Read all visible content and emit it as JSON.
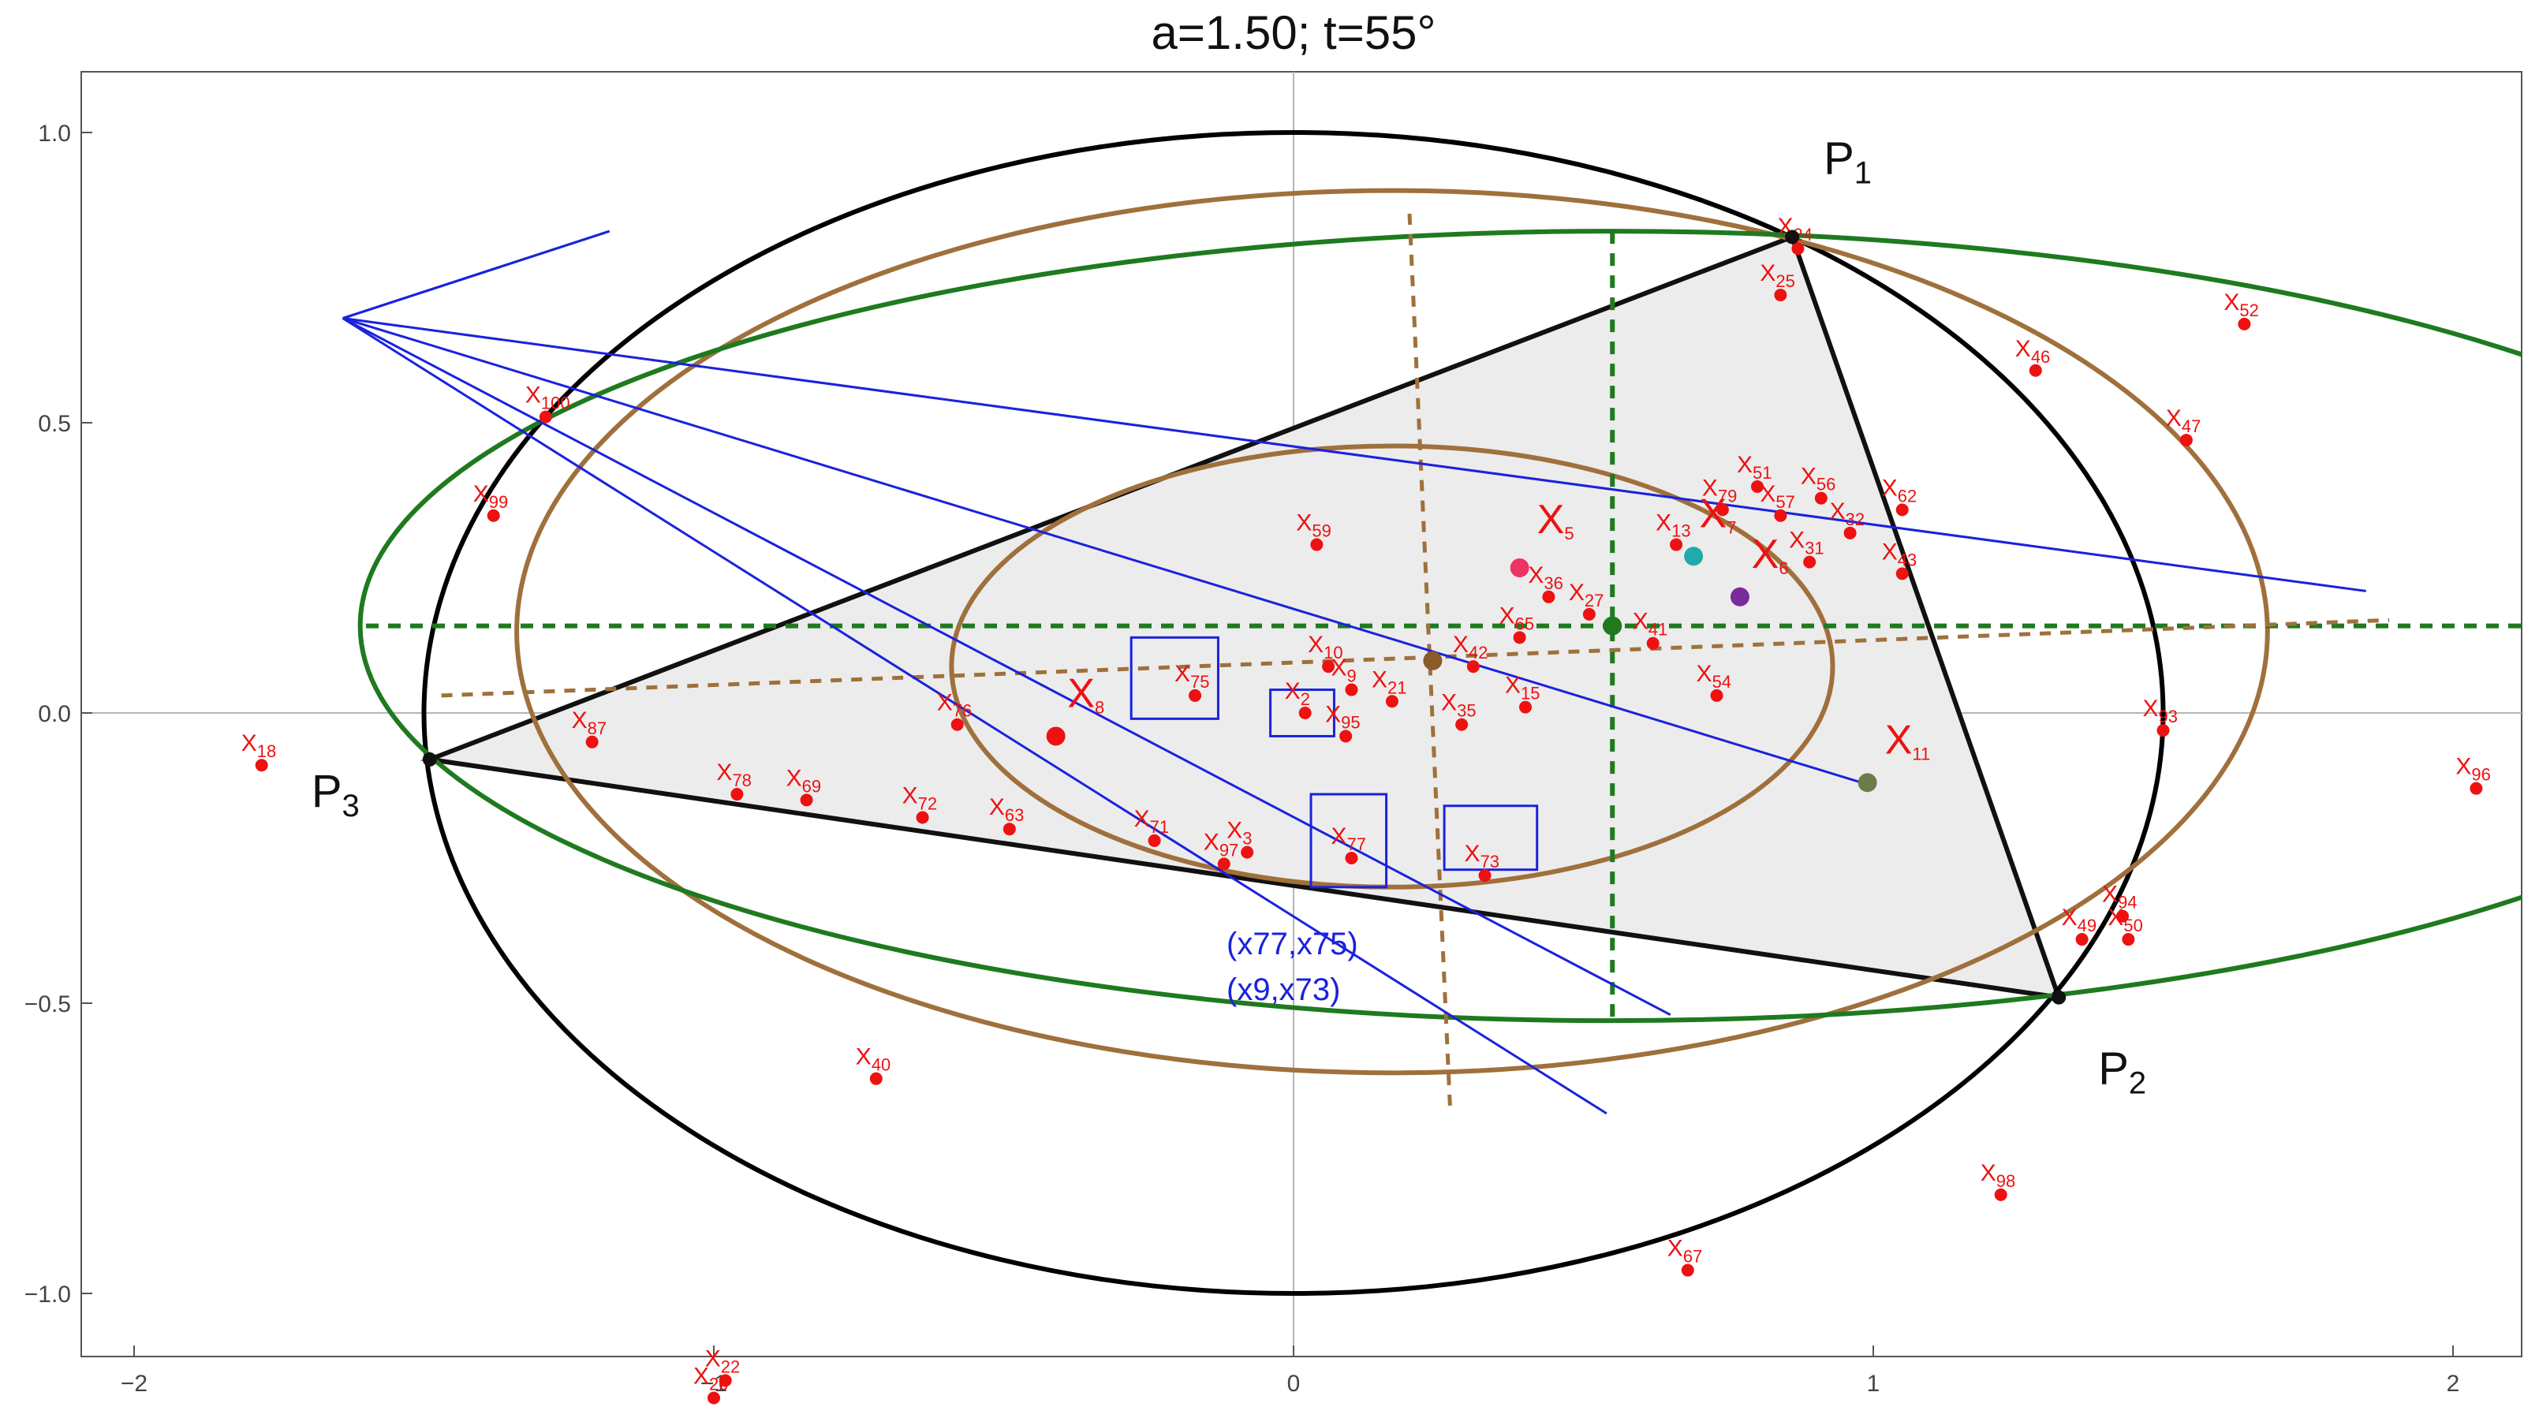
{
  "chart_data": {
    "type": "scatter",
    "title": "a=1.50; t=55°",
    "xlabel": "",
    "ylabel": "",
    "xlim": [
      -2.1,
      2.1
    ],
    "ylim": [
      -1.1,
      1.1
    ],
    "x_ticks": [
      -2,
      -1,
      0,
      1,
      2
    ],
    "y_ticks": [
      -1.0,
      -0.5,
      0.0,
      0.5,
      1.0
    ],
    "x_tick_labels": [
      "−2",
      "−1",
      "0",
      "1",
      "2"
    ],
    "y_tick_labels": [
      "−1.0",
      "−0.5",
      "0.0",
      "0.5",
      "1.0"
    ],
    "grid": false,
    "colors": {
      "circumellipse": "#000000",
      "brown_ellipses": "#a0703c",
      "green_ellipse": "#1f7a1f",
      "blue_lines": "#1a22dd",
      "points": "#ee1111",
      "triangle_fill": "#ececec"
    },
    "vertices": [
      {
        "base": "P",
        "sub": "1",
        "x": 0.86,
        "y": 0.82
      },
      {
        "base": "P",
        "sub": "2",
        "x": 1.32,
        "y": -0.49
      },
      {
        "base": "P",
        "sub": "3",
        "x": -1.49,
        "y": -0.08
      }
    ],
    "ellipses": [
      {
        "name": "circumellipse",
        "cx": 0,
        "cy": 0,
        "rx": 1.5,
        "ry": 1.0
      },
      {
        "name": "brown-outer",
        "cx": 0.17,
        "cy": 0.14,
        "rx": 1.51,
        "ry": 0.76
      },
      {
        "name": "brown-inner",
        "cx": 0.17,
        "cy": 0.08,
        "rx": 0.76,
        "ry": 0.38
      },
      {
        "name": "green",
        "cx": 0.55,
        "cy": 0.15,
        "rx": 2.16,
        "ry": 0.68
      }
    ],
    "center_markers": [
      {
        "x": 0.24,
        "y": 0.09,
        "color": "#8b5a2b"
      },
      {
        "x": 0.55,
        "y": 0.15,
        "color": "#1f7a1f"
      }
    ],
    "big_points": [
      {
        "base": "X",
        "sub": "5",
        "x": 0.39,
        "y": 0.25,
        "color": "#ee3366",
        "lx": 0.42,
        "ly": 0.31
      },
      {
        "base": "X",
        "sub": "8",
        "x": -0.41,
        "y": -0.04,
        "color": "#ee1111",
        "lx": -0.39,
        "ly": 0.01
      },
      {
        "base": "X",
        "sub": "11",
        "x": 0.99,
        "y": -0.12,
        "color": "#6b7b4a",
        "lx": 1.02,
        "ly": -0.07
      },
      {
        "base": "X",
        "sub": "7",
        "x": 0.69,
        "y": 0.27,
        "color": "#22aaaa",
        "lx": 0.7,
        "ly": 0.32
      },
      {
        "base": "X",
        "sub": "6",
        "x": 0.77,
        "y": 0.2,
        "color": "#7a2a9a",
        "lx": 0.79,
        "ly": 0.25
      }
    ],
    "points": [
      {
        "base": "X",
        "sub": "18",
        "x": -1.78,
        "y": -0.09
      },
      {
        "base": "X",
        "sub": "100",
        "x": -1.29,
        "y": 0.51
      },
      {
        "base": "X",
        "sub": "99",
        "x": -1.38,
        "y": 0.34
      },
      {
        "base": "X",
        "sub": "87",
        "x": -1.21,
        "y": -0.05
      },
      {
        "base": "X",
        "sub": "78",
        "x": -0.96,
        "y": -0.14
      },
      {
        "base": "X",
        "sub": "69",
        "x": -0.84,
        "y": -0.15
      },
      {
        "base": "X",
        "sub": "72",
        "x": -0.64,
        "y": -0.18
      },
      {
        "base": "X",
        "sub": "63",
        "x": -0.49,
        "y": -0.2
      },
      {
        "base": "X",
        "sub": "76",
        "x": -0.58,
        "y": -0.02
      },
      {
        "base": "X",
        "sub": "71",
        "x": -0.24,
        "y": -0.22
      },
      {
        "base": "X",
        "sub": "97",
        "x": -0.12,
        "y": -0.26
      },
      {
        "base": "X",
        "sub": "3",
        "x": -0.08,
        "y": -0.24
      },
      {
        "base": "X",
        "sub": "75",
        "x": -0.17,
        "y": 0.03
      },
      {
        "base": "X",
        "sub": "2",
        "x": 0.02,
        "y": 0.0
      },
      {
        "base": "X",
        "sub": "95",
        "x": 0.09,
        "y": -0.04
      },
      {
        "base": "X",
        "sub": "77",
        "x": 0.1,
        "y": -0.25
      },
      {
        "base": "X",
        "sub": "73",
        "x": 0.33,
        "y": -0.28
      },
      {
        "base": "X",
        "sub": "10",
        "x": 0.06,
        "y": 0.08
      },
      {
        "base": "X",
        "sub": "9",
        "x": 0.1,
        "y": 0.04
      },
      {
        "base": "X",
        "sub": "21",
        "x": 0.17,
        "y": 0.02
      },
      {
        "base": "X",
        "sub": "35",
        "x": 0.29,
        "y": -0.02
      },
      {
        "base": "X",
        "sub": "59",
        "x": 0.04,
        "y": 0.29
      },
      {
        "base": "X",
        "sub": "42",
        "x": 0.31,
        "y": 0.08
      },
      {
        "base": "X",
        "sub": "15",
        "x": 0.4,
        "y": 0.01
      },
      {
        "base": "X",
        "sub": "65",
        "x": 0.39,
        "y": 0.13
      },
      {
        "base": "X",
        "sub": "36",
        "x": 0.44,
        "y": 0.2
      },
      {
        "base": "X",
        "sub": "27",
        "x": 0.51,
        "y": 0.17
      },
      {
        "base": "X",
        "sub": "13",
        "x": 0.66,
        "y": 0.29
      },
      {
        "base": "X",
        "sub": "79",
        "x": 0.74,
        "y": 0.35
      },
      {
        "base": "X",
        "sub": "51",
        "x": 0.8,
        "y": 0.39
      },
      {
        "base": "X",
        "sub": "56",
        "x": 0.91,
        "y": 0.37
      },
      {
        "base": "X",
        "sub": "57",
        "x": 0.84,
        "y": 0.34
      },
      {
        "base": "X",
        "sub": "31",
        "x": 0.89,
        "y": 0.26
      },
      {
        "base": "X",
        "sub": "32",
        "x": 0.96,
        "y": 0.31
      },
      {
        "base": "X",
        "sub": "62",
        "x": 1.05,
        "y": 0.35
      },
      {
        "base": "X",
        "sub": "43",
        "x": 1.05,
        "y": 0.24
      },
      {
        "base": "X",
        "sub": "41",
        "x": 0.62,
        "y": 0.12
      },
      {
        "base": "X",
        "sub": "54",
        "x": 0.73,
        "y": 0.03
      },
      {
        "base": "X",
        "sub": "24",
        "x": 0.87,
        "y": 0.8
      },
      {
        "base": "X",
        "sub": "25",
        "x": 0.84,
        "y": 0.72
      },
      {
        "base": "X",
        "sub": "46",
        "x": 1.28,
        "y": 0.59
      },
      {
        "base": "X",
        "sub": "52",
        "x": 1.64,
        "y": 0.67
      },
      {
        "base": "X",
        "sub": "47",
        "x": 1.54,
        "y": 0.47
      },
      {
        "base": "X",
        "sub": "93",
        "x": 1.5,
        "y": -0.03
      },
      {
        "base": "X",
        "sub": "96",
        "x": 2.04,
        "y": -0.13
      },
      {
        "base": "X",
        "sub": "49",
        "x": 1.36,
        "y": -0.39
      },
      {
        "base": "X",
        "sub": "94",
        "x": 1.43,
        "y": -0.35
      },
      {
        "base": "X",
        "sub": "50",
        "x": 1.44,
        "y": -0.39
      },
      {
        "base": "X",
        "sub": "98",
        "x": 1.22,
        "y": -0.83
      },
      {
        "base": "X",
        "sub": "67",
        "x": 0.68,
        "y": -0.96
      },
      {
        "base": "X",
        "sub": "40",
        "x": -0.72,
        "y": -0.63
      },
      {
        "base": "X",
        "sub": "22",
        "x": -0.98,
        "y": -1.15
      },
      {
        "base": "X",
        "sub": "20",
        "x": -1.0,
        "y": -1.18
      }
    ],
    "annotations": [
      "(x77,x75)",
      "(x9,x73)"
    ]
  }
}
